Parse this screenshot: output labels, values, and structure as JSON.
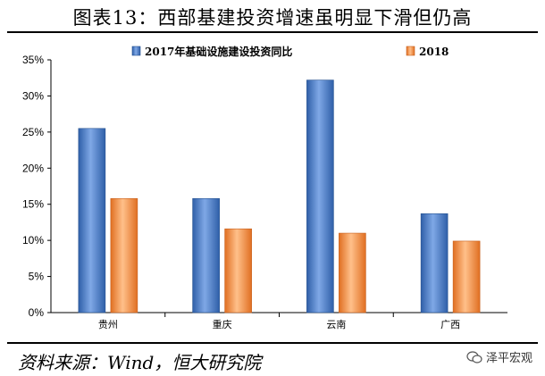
{
  "chart_data": {
    "type": "bar",
    "title": "图表13：西部基建投资增速虽明显下滑但仍高",
    "categories": [
      "贵州",
      "重庆",
      "云南",
      "广西"
    ],
    "series": [
      {
        "name": "2017年基础设施建设投资同比",
        "values": [
          25.5,
          15.8,
          32.2,
          13.7
        ],
        "color": "#4a7fc9"
      },
      {
        "name": "2018",
        "values": [
          15.8,
          11.6,
          11.0,
          9.9
        ],
        "color": "#f08a3c"
      }
    ],
    "ylim": [
      0,
      35
    ],
    "yticks": [
      "0%",
      "5%",
      "10%",
      "15%",
      "20%",
      "25%",
      "30%",
      "35%"
    ],
    "ytick_values": [
      0,
      5,
      10,
      15,
      20,
      25,
      30,
      35
    ],
    "legend_position": "top"
  },
  "source_text": "资料来源：Wind，恒大研究院",
  "watermark_text": "泽平宏观",
  "watermark_icon": "wechat-icon"
}
